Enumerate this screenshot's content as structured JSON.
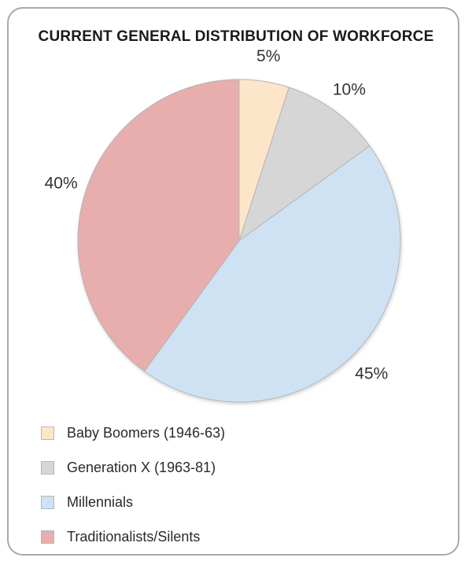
{
  "chart_data": {
    "type": "pie",
    "title": "CURRENT GENERAL DISTRIBUTION OF WORKFORCE",
    "slices": [
      {
        "name": "Baby Boomers (1946-63)",
        "value": 5,
        "label": "5%",
        "color": "#fde5c9"
      },
      {
        "name": "Generation X (1963-81)",
        "value": 10,
        "label": "10%",
        "color": "#d6d6d6"
      },
      {
        "name": "Millennials",
        "value": 45,
        "label": "45%",
        "color": "#cfe2f4"
      },
      {
        "name": "Traditionalists/Silents",
        "value": 40,
        "label": "40%",
        "color": "#e8adad"
      }
    ],
    "start_angle_deg": 0,
    "direction": "clockwise",
    "legend_position": "bottom-left"
  }
}
